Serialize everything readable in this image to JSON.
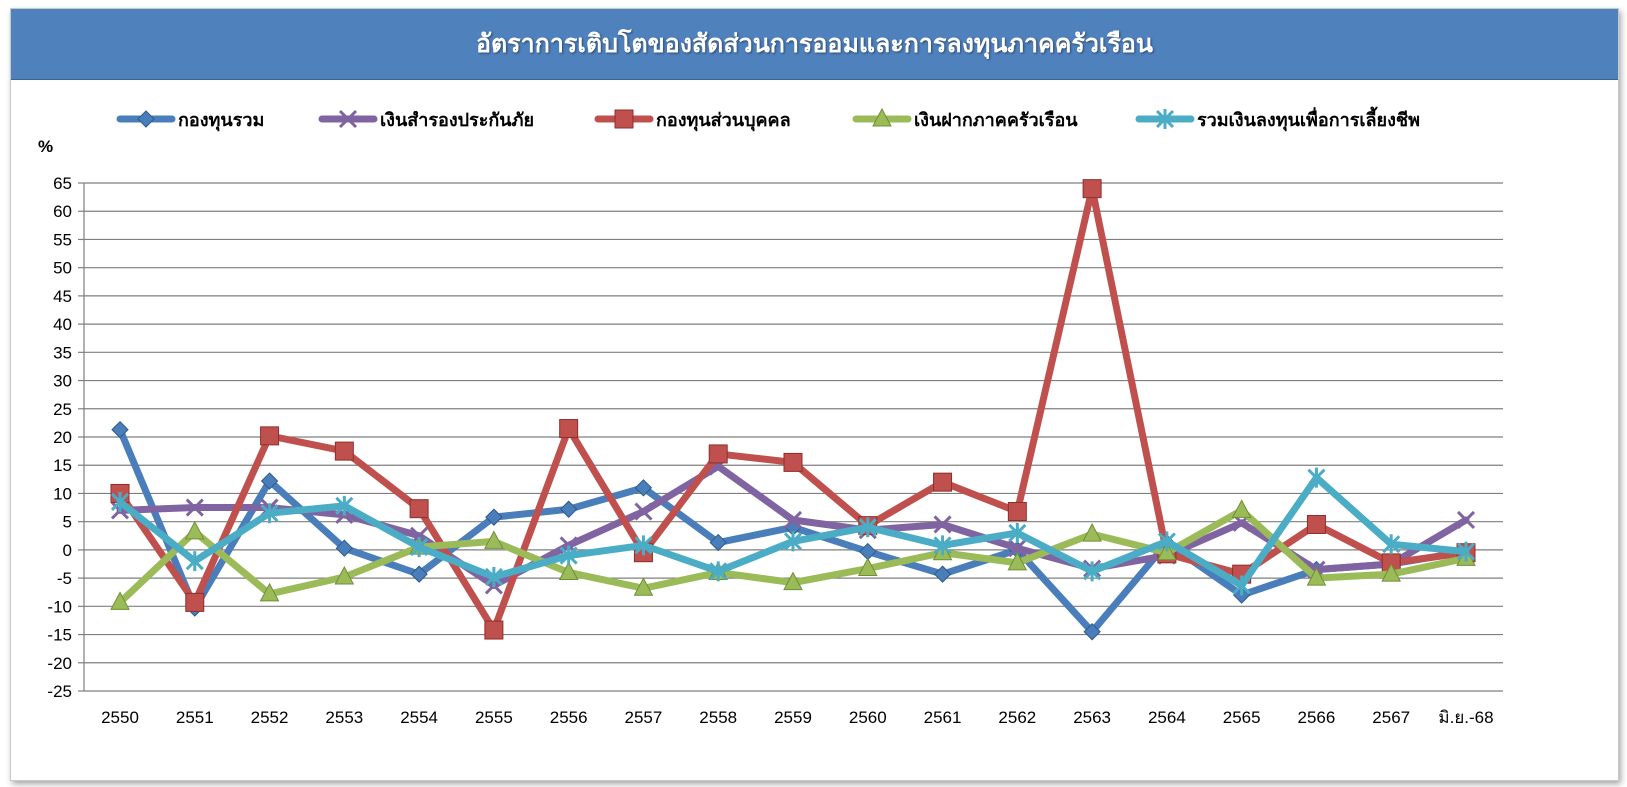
{
  "chart_data": {
    "type": "line",
    "title": "อัตราการเติบโตของสัดส่วนการออมและการลงทุนภาคครัวเรือน",
    "ylabel": "%",
    "xlabel": "",
    "ylim": [
      -25,
      65
    ],
    "yticks": [
      65,
      60,
      55,
      50,
      45,
      40,
      35,
      30,
      25,
      20,
      15,
      10,
      5,
      0,
      -5,
      -10,
      -15,
      -20,
      -25
    ],
    "grid": true,
    "legend_position": "top",
    "categories": [
      "2550",
      "2551",
      "2552",
      "2553",
      "2554",
      "2555",
      "2556",
      "2557",
      "2558",
      "2559",
      "2560",
      "2561",
      "2562",
      "2563",
      "2564",
      "2565",
      "2566",
      "2567",
      "มิ.ย.-68"
    ],
    "series": [
      {
        "name": "กองทุนรวม",
        "color": "#4a7ebb",
        "marker": "diamond",
        "values": [
          21.3,
          -10.3,
          12.2,
          0.3,
          -4.3,
          5.8,
          7.2,
          11.0,
          1.3,
          4.0,
          -0.3,
          -4.3,
          0.0,
          -14.5,
          1.2,
          -8.0,
          -3.5,
          -2.5,
          -0.3
        ]
      },
      {
        "name": "เงินสำรองประกันภัย",
        "color": "#8064a2",
        "marker": "x",
        "values": [
          7.0,
          7.5,
          7.5,
          6.2,
          2.5,
          -6.3,
          0.8,
          6.8,
          14.8,
          5.3,
          3.5,
          4.5,
          0.3,
          -3.3,
          -1.0,
          4.8,
          -3.5,
          -2.5,
          5.3
        ]
      },
      {
        "name": "กองทุนส่วนบุคคล",
        "color": "#c0504d",
        "marker": "square",
        "values": [
          10.0,
          -9.3,
          20.2,
          17.5,
          7.3,
          -14.2,
          21.5,
          -0.5,
          17.0,
          15.5,
          4.3,
          12.0,
          6.8,
          64.0,
          -0.7,
          -4.3,
          4.5,
          -2.3,
          -0.5
        ]
      },
      {
        "name": "เงินฝากภาคครัวเรือน",
        "color": "#9bbb59",
        "marker": "triangle",
        "values": [
          -9.3,
          3.2,
          -7.8,
          -4.8,
          0.5,
          1.5,
          -4.0,
          -6.8,
          -4.0,
          -5.8,
          -3.3,
          -0.5,
          -2.3,
          2.8,
          -0.5,
          7.0,
          -5.0,
          -4.3,
          -1.5
        ]
      },
      {
        "name": "รวมเงินลงทุนเพื่อการเลี้ยงชีพ",
        "color": "#4bacc6",
        "marker": "asterisk",
        "values": [
          8.5,
          -2.0,
          6.5,
          7.8,
          0.5,
          -4.8,
          -1.0,
          0.8,
          -3.8,
          1.5,
          4.0,
          0.8,
          3.0,
          -3.8,
          1.5,
          -6.3,
          12.8,
          1.0,
          -0.3
        ]
      }
    ]
  }
}
